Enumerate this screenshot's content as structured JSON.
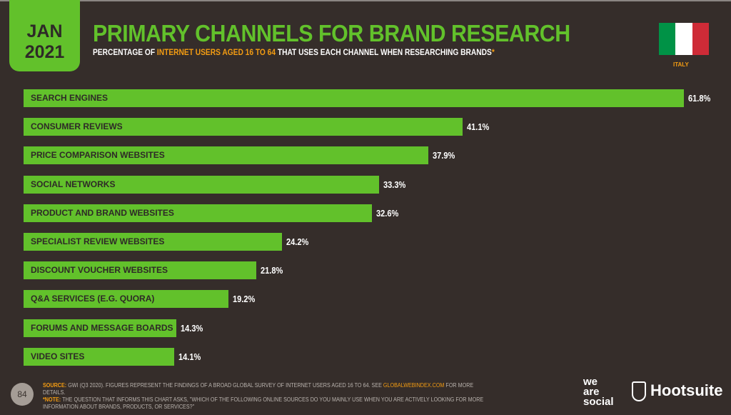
{
  "header": {
    "month": "JAN",
    "year": "2021",
    "title": "PRIMARY CHANNELS FOR BRAND RESEARCH",
    "subtitle_pre": "PERCENTAGE OF ",
    "subtitle_hl": "INTERNET USERS AGED 16 TO 64",
    "subtitle_post": " THAT USES EACH CHANNEL WHEN RESEARCHING BRANDS",
    "subtitle_star": "*",
    "country": "ITALY",
    "flag_colors": [
      "#009246",
      "#ffffff",
      "#ce2b37"
    ]
  },
  "chart_data": {
    "type": "bar",
    "orientation": "horizontal",
    "categories": [
      "SEARCH ENGINES",
      "CONSUMER REVIEWS",
      "PRICE COMPARISON WEBSITES",
      "SOCIAL NETWORKS",
      "PRODUCT AND BRAND WEBSITES",
      "SPECIALIST REVIEW WEBSITES",
      "DISCOUNT VOUCHER WEBSITES",
      "Q&A SERVICES (E.G. QUORA)",
      "FORUMS AND MESSAGE BOARDS",
      "VIDEO SITES"
    ],
    "values": [
      61.8,
      41.1,
      37.9,
      33.3,
      32.6,
      24.2,
      21.8,
      19.2,
      14.3,
      14.1
    ],
    "labels": [
      "61.8%",
      "41.1%",
      "37.9%",
      "33.3%",
      "32.6%",
      "24.2%",
      "21.8%",
      "19.2%",
      "14.3%",
      "14.1%"
    ],
    "bar_color": "#62c12b",
    "xlim": [
      0,
      61.8
    ]
  },
  "footer": {
    "page": "84",
    "source_label": "SOURCE:",
    "source_text": " GWI (Q3 2020). FIGURES REPRESENT THE FINDINGS OF A BROAD GLOBAL SURVEY OF INTERNET USERS AGED 16 TO 64. SEE ",
    "source_link": "GLOBALWEBINDEX.COM",
    "source_end": " FOR MORE DETAILS.",
    "note_label": "*NOTE:",
    "note_text": " THE QUESTION THAT INFORMS THIS CHART ASKS, \"WHICH OF THE FOLLOWING ONLINE SOURCES DO YOU MAINLY USE WHEN YOU ARE ACTIVELY LOOKING FOR MORE INFORMATION ABOUT BRANDS, PRODUCTS, OR SERVICES?\"",
    "logo1": "we are social",
    "logo2": "Hootsuite"
  }
}
